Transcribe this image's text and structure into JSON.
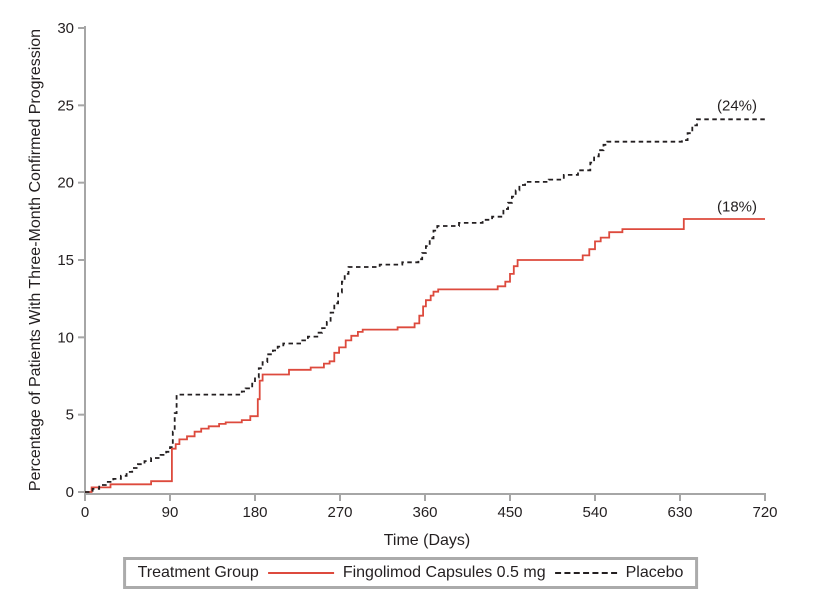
{
  "figure": {
    "legend": {
      "title": "Treatment Group"
    }
  },
  "chart_data": {
    "type": "line",
    "subtype": "step",
    "title": "",
    "xlabel": "Time (Days)",
    "ylabel": "Percentage of Patients With Three-Month Confirmed Progression",
    "xlim": [
      0,
      720
    ],
    "ylim": [
      0,
      30
    ],
    "xticks": [
      0,
      90,
      180,
      270,
      360,
      450,
      540,
      630,
      720
    ],
    "yticks": [
      0,
      5,
      10,
      15,
      20,
      25,
      30
    ],
    "grid": false,
    "legend_position": "bottom",
    "axis_color": "#a6a6a6",
    "series": [
      {
        "name": "Fingolimod Capsules 0.5 mg",
        "color": "#dd4a3d",
        "dash": "solid",
        "end_label": "(18%)",
        "final_value": 17.7,
        "points": [
          [
            0,
            0
          ],
          [
            7,
            0.3
          ],
          [
            27,
            0.5
          ],
          [
            70,
            0.7
          ],
          [
            92,
            2.8
          ],
          [
            96,
            3.1
          ],
          [
            100,
            3.4
          ],
          [
            108,
            3.6
          ],
          [
            116,
            3.9
          ],
          [
            123,
            4.1
          ],
          [
            131,
            4.25
          ],
          [
            142,
            4.4
          ],
          [
            149,
            4.5
          ],
          [
            166,
            4.65
          ],
          [
            175,
            4.9
          ],
          [
            183,
            6.0
          ],
          [
            185,
            7.2
          ],
          [
            188,
            7.6
          ],
          [
            216,
            7.9
          ],
          [
            239,
            8.05
          ],
          [
            253,
            8.3
          ],
          [
            259,
            8.45
          ],
          [
            264,
            9.0
          ],
          [
            269,
            9.35
          ],
          [
            276,
            9.8
          ],
          [
            282,
            10.1
          ],
          [
            289,
            10.35
          ],
          [
            294,
            10.5
          ],
          [
            331,
            10.65
          ],
          [
            349,
            10.9
          ],
          [
            354,
            11.4
          ],
          [
            358,
            12.0
          ],
          [
            361,
            12.4
          ],
          [
            366,
            12.7
          ],
          [
            369,
            12.95
          ],
          [
            374,
            13.1
          ],
          [
            437,
            13.3
          ],
          [
            445,
            13.6
          ],
          [
            450,
            14.1
          ],
          [
            454,
            14.6
          ],
          [
            458,
            15.0
          ],
          [
            527,
            15.3
          ],
          [
            534,
            15.7
          ],
          [
            540,
            16.2
          ],
          [
            546,
            16.45
          ],
          [
            555,
            16.8
          ],
          [
            569,
            17.0
          ],
          [
            634,
            17.65
          ],
          [
            720,
            17.65
          ]
        ]
      },
      {
        "name": "Placebo",
        "color": "#231f20",
        "dash": "dashed",
        "end_label": "(24%)",
        "final_value": 24.1,
        "points": [
          [
            0,
            0
          ],
          [
            8,
            0.2
          ],
          [
            15,
            0.45
          ],
          [
            22,
            0.65
          ],
          [
            30,
            0.85
          ],
          [
            38,
            1.05
          ],
          [
            44,
            1.3
          ],
          [
            50,
            1.55
          ],
          [
            56,
            1.8
          ],
          [
            63,
            2.0
          ],
          [
            70,
            2.2
          ],
          [
            80,
            2.4
          ],
          [
            86,
            2.6
          ],
          [
            90,
            2.9
          ],
          [
            93,
            3.9
          ],
          [
            95,
            5.1
          ],
          [
            97,
            6.3
          ],
          [
            166,
            6.5
          ],
          [
            170,
            6.7
          ],
          [
            177,
            7.0
          ],
          [
            180,
            7.4
          ],
          [
            184,
            8.0
          ],
          [
            188,
            8.4
          ],
          [
            193,
            8.9
          ],
          [
            199,
            9.15
          ],
          [
            204,
            9.4
          ],
          [
            210,
            9.6
          ],
          [
            229,
            9.8
          ],
          [
            236,
            10.05
          ],
          [
            246,
            10.3
          ],
          [
            251,
            10.6
          ],
          [
            256,
            11.0
          ],
          [
            260,
            11.6
          ],
          [
            264,
            12.2
          ],
          [
            268,
            12.9
          ],
          [
            272,
            13.6
          ],
          [
            275,
            14.1
          ],
          [
            279,
            14.55
          ],
          [
            312,
            14.7
          ],
          [
            336,
            14.85
          ],
          [
            353,
            15.05
          ],
          [
            357,
            15.45
          ],
          [
            361,
            15.9
          ],
          [
            365,
            16.4
          ],
          [
            369,
            16.9
          ],
          [
            373,
            17.2
          ],
          [
            396,
            17.4
          ],
          [
            421,
            17.6
          ],
          [
            431,
            17.8
          ],
          [
            443,
            18.3
          ],
          [
            448,
            18.7
          ],
          [
            452,
            19.1
          ],
          [
            456,
            19.5
          ],
          [
            460,
            19.85
          ],
          [
            466,
            20.05
          ],
          [
            491,
            20.2
          ],
          [
            507,
            20.5
          ],
          [
            522,
            20.8
          ],
          [
            535,
            21.3
          ],
          [
            539,
            21.7
          ],
          [
            544,
            22.1
          ],
          [
            549,
            22.45
          ],
          [
            553,
            22.65
          ],
          [
            632,
            22.75
          ],
          [
            638,
            23.2
          ],
          [
            643,
            23.7
          ],
          [
            648,
            24.1
          ],
          [
            720,
            24.1
          ]
        ]
      }
    ]
  }
}
